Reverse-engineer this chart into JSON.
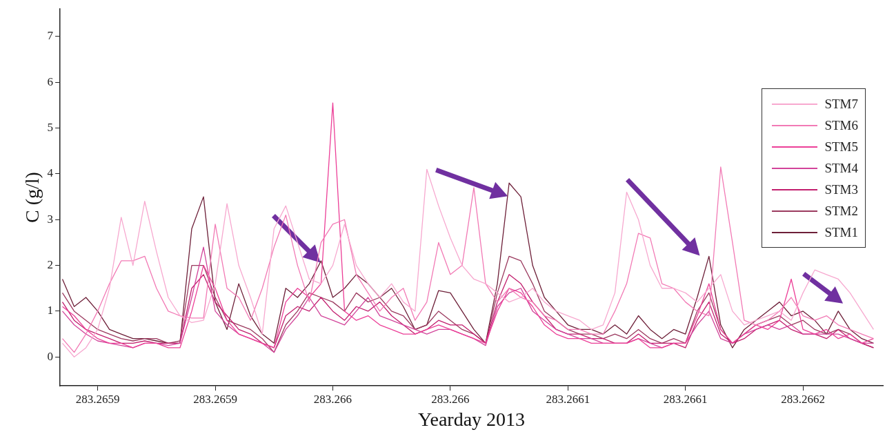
{
  "chart_data": {
    "type": "line",
    "xlabel": "Yearday 2013",
    "ylabel": "C (g/l)",
    "legend": "right",
    "marker": "none",
    "line_style": "solid",
    "xlim": [
      283.265864,
      283.266214
    ],
    "ylim": [
      -0.63,
      7.6
    ],
    "xticks": [
      {
        "value": 283.26588,
        "label": "283.2659"
      },
      {
        "value": 283.26593,
        "label": "283.2659"
      },
      {
        "value": 283.26598,
        "label": "283.266"
      },
      {
        "value": 283.26603,
        "label": "283.266"
      },
      {
        "value": 283.26608,
        "label": "283.2661"
      },
      {
        "value": 283.26613,
        "label": "283.2661"
      },
      {
        "value": 283.26618,
        "label": "283.2662"
      }
    ],
    "yticks": [
      0,
      1,
      2,
      3,
      4,
      5,
      6,
      7
    ],
    "x": [
      283.265865,
      283.26587,
      283.265875,
      283.26588,
      283.265885,
      283.26589,
      283.265895,
      283.2659,
      283.265905,
      283.26591,
      283.265915,
      283.26592,
      283.265925,
      283.26593,
      283.265935,
      283.26594,
      283.265945,
      283.26595,
      283.265955,
      283.26596,
      283.265965,
      283.26597,
      283.265975,
      283.26598,
      283.265985,
      283.26599,
      283.265995,
      283.266,
      283.266005,
      283.26601,
      283.266015,
      283.26602,
      283.266025,
      283.26603,
      283.266035,
      283.26604,
      283.266045,
      283.26605,
      283.266055,
      283.26606,
      283.266065,
      283.26607,
      283.266075,
      283.26608,
      283.266085,
      283.26609,
      283.266095,
      283.2661,
      283.266105,
      283.26611,
      283.266115,
      283.26612,
      283.266125,
      283.26613,
      283.266135,
      283.26614,
      283.266145,
      283.26615,
      283.266155,
      283.26616,
      283.266165,
      283.26617,
      283.266175,
      283.26618,
      283.266185,
      283.26619,
      283.266195,
      283.2662,
      283.266205,
      283.26621
    ],
    "series": [
      {
        "name": "STM7",
        "color": "#f7a8cf",
        "values": [
          0.3,
          0.0,
          0.2,
          0.6,
          1.5,
          3.05,
          2.0,
          3.4,
          2.3,
          1.3,
          0.9,
          0.75,
          0.8,
          1.6,
          3.35,
          2.0,
          1.3,
          0.5,
          2.8,
          3.3,
          2.5,
          1.7,
          1.6,
          2.0,
          2.9,
          2.0,
          1.6,
          1.3,
          1.6,
          1.2,
          1.0,
          4.1,
          3.3,
          2.6,
          2.0,
          1.7,
          1.6,
          1.4,
          1.2,
          1.3,
          1.5,
          1.2,
          1.0,
          0.9,
          0.8,
          0.6,
          0.7,
          1.4,
          3.6,
          3.0,
          2.0,
          1.5,
          1.5,
          1.4,
          1.2,
          1.5,
          1.8,
          1.0,
          0.7,
          0.8,
          0.9,
          1.0,
          0.8,
          1.4,
          1.9,
          1.8,
          1.7,
          1.4,
          1.0,
          0.6
        ]
      },
      {
        "name": "STM6",
        "color": "#f27ab5",
        "values": [
          0.4,
          0.1,
          0.5,
          1.0,
          1.6,
          2.1,
          2.1,
          2.2,
          1.5,
          1.0,
          0.9,
          0.85,
          0.85,
          2.9,
          1.5,
          1.3,
          0.8,
          1.5,
          2.4,
          3.1,
          2.0,
          1.2,
          2.5,
          2.9,
          3.0,
          1.8,
          1.4,
          1.0,
          1.3,
          1.5,
          0.8,
          1.2,
          2.5,
          1.8,
          2.0,
          3.7,
          1.6,
          1.2,
          1.5,
          1.3,
          1.2,
          0.9,
          0.8,
          0.6,
          0.6,
          0.5,
          0.5,
          1.0,
          1.6,
          2.7,
          2.6,
          1.6,
          1.5,
          1.2,
          1.0,
          0.9,
          4.15,
          2.5,
          0.8,
          0.7,
          0.8,
          1.0,
          1.3,
          0.9,
          0.8,
          0.9,
          0.7,
          0.6,
          0.5,
          0.4
        ]
      },
      {
        "name": "STM5",
        "color": "#ec3f97",
        "values": [
          1.1,
          0.9,
          0.6,
          0.4,
          0.3,
          0.3,
          0.2,
          0.3,
          0.3,
          0.2,
          0.2,
          1.0,
          2.0,
          1.5,
          0.8,
          0.5,
          0.4,
          0.3,
          0.2,
          1.2,
          1.5,
          1.3,
          1.6,
          5.55,
          1.0,
          0.8,
          0.9,
          0.7,
          0.6,
          0.5,
          0.5,
          0.6,
          0.7,
          0.6,
          0.5,
          0.4,
          0.3,
          1.0,
          1.5,
          1.4,
          1.1,
          0.7,
          0.5,
          0.4,
          0.4,
          0.3,
          0.3,
          0.3,
          0.3,
          0.4,
          0.2,
          0.2,
          0.3,
          0.3,
          0.9,
          1.6,
          0.6,
          0.3,
          0.5,
          0.7,
          0.6,
          0.8,
          1.7,
          0.6,
          0.5,
          0.6,
          0.4,
          0.5,
          0.3,
          0.4
        ]
      },
      {
        "name": "STM4",
        "color": "#d2449a",
        "values": [
          1.0,
          0.7,
          0.5,
          0.35,
          0.3,
          0.25,
          0.2,
          0.3,
          0.3,
          0.25,
          0.3,
          1.3,
          2.4,
          1.0,
          0.7,
          0.5,
          0.4,
          0.3,
          0.1,
          0.6,
          0.9,
          1.3,
          0.9,
          0.8,
          0.7,
          1.0,
          1.3,
          0.9,
          0.8,
          0.7,
          0.6,
          0.5,
          0.6,
          0.6,
          0.5,
          0.4,
          0.25,
          1.1,
          1.4,
          1.5,
          1.0,
          0.8,
          0.6,
          0.5,
          0.4,
          0.4,
          0.3,
          0.3,
          0.3,
          0.4,
          0.3,
          0.2,
          0.3,
          0.3,
          0.7,
          1.0,
          0.4,
          0.3,
          0.5,
          0.6,
          0.7,
          0.6,
          0.7,
          0.5,
          0.5,
          0.5,
          0.5,
          0.4,
          0.3,
          0.3
        ]
      },
      {
        "name": "STM3",
        "color": "#c21e6e",
        "values": [
          1.2,
          0.8,
          0.6,
          0.5,
          0.4,
          0.3,
          0.3,
          0.35,
          0.3,
          0.3,
          0.3,
          1.5,
          1.8,
          1.2,
          0.9,
          0.6,
          0.5,
          0.3,
          0.2,
          0.9,
          1.1,
          1.0,
          1.3,
          1.0,
          0.8,
          1.1,
          1.0,
          1.2,
          0.9,
          0.7,
          0.5,
          0.6,
          0.8,
          0.7,
          0.7,
          0.5,
          0.3,
          1.2,
          1.8,
          1.6,
          1.2,
          0.9,
          0.6,
          0.5,
          0.5,
          0.4,
          0.4,
          0.3,
          0.3,
          0.5,
          0.3,
          0.3,
          0.3,
          0.2,
          0.8,
          1.2,
          0.5,
          0.3,
          0.4,
          0.6,
          0.7,
          0.8,
          0.6,
          0.5,
          0.5,
          0.4,
          0.6,
          0.4,
          0.3,
          0.2
        ]
      },
      {
        "name": "STM2",
        "color": "#9b3a5f",
        "values": [
          1.4,
          1.0,
          0.8,
          0.6,
          0.5,
          0.4,
          0.35,
          0.4,
          0.4,
          0.3,
          0.35,
          2.0,
          2.0,
          1.3,
          0.8,
          0.7,
          0.6,
          0.4,
          0.1,
          0.7,
          1.0,
          1.4,
          1.3,
          1.2,
          1.0,
          1.4,
          1.2,
          1.3,
          1.0,
          0.9,
          0.6,
          0.7,
          1.0,
          0.8,
          0.6,
          0.5,
          0.3,
          1.4,
          2.2,
          2.1,
          1.6,
          1.0,
          0.8,
          0.6,
          0.5,
          0.5,
          0.4,
          0.5,
          0.4,
          0.6,
          0.4,
          0.3,
          0.4,
          0.3,
          1.0,
          1.4,
          0.6,
          0.3,
          0.5,
          0.7,
          0.8,
          0.9,
          0.7,
          0.8,
          0.6,
          0.5,
          0.6,
          0.5,
          0.3,
          0.2
        ]
      },
      {
        "name": "STM1",
        "color": "#6d1f38",
        "values": [
          1.7,
          1.1,
          1.3,
          1.0,
          0.6,
          0.5,
          0.4,
          0.4,
          0.35,
          0.3,
          0.3,
          2.8,
          3.5,
          1.2,
          0.6,
          1.6,
          0.9,
          0.5,
          0.3,
          1.5,
          1.3,
          1.6,
          2.1,
          1.3,
          1.5,
          1.8,
          1.6,
          1.3,
          1.5,
          1.1,
          0.6,
          0.7,
          1.45,
          1.4,
          1.0,
          0.6,
          0.3,
          1.6,
          3.8,
          3.5,
          2.0,
          1.3,
          1.0,
          0.7,
          0.6,
          0.6,
          0.5,
          0.7,
          0.5,
          0.9,
          0.6,
          0.4,
          0.6,
          0.5,
          1.3,
          2.2,
          0.7,
          0.2,
          0.6,
          0.8,
          1.0,
          1.2,
          0.9,
          1.0,
          0.8,
          0.5,
          1.0,
          0.6,
          0.4,
          0.3
        ]
      }
    ]
  }
}
